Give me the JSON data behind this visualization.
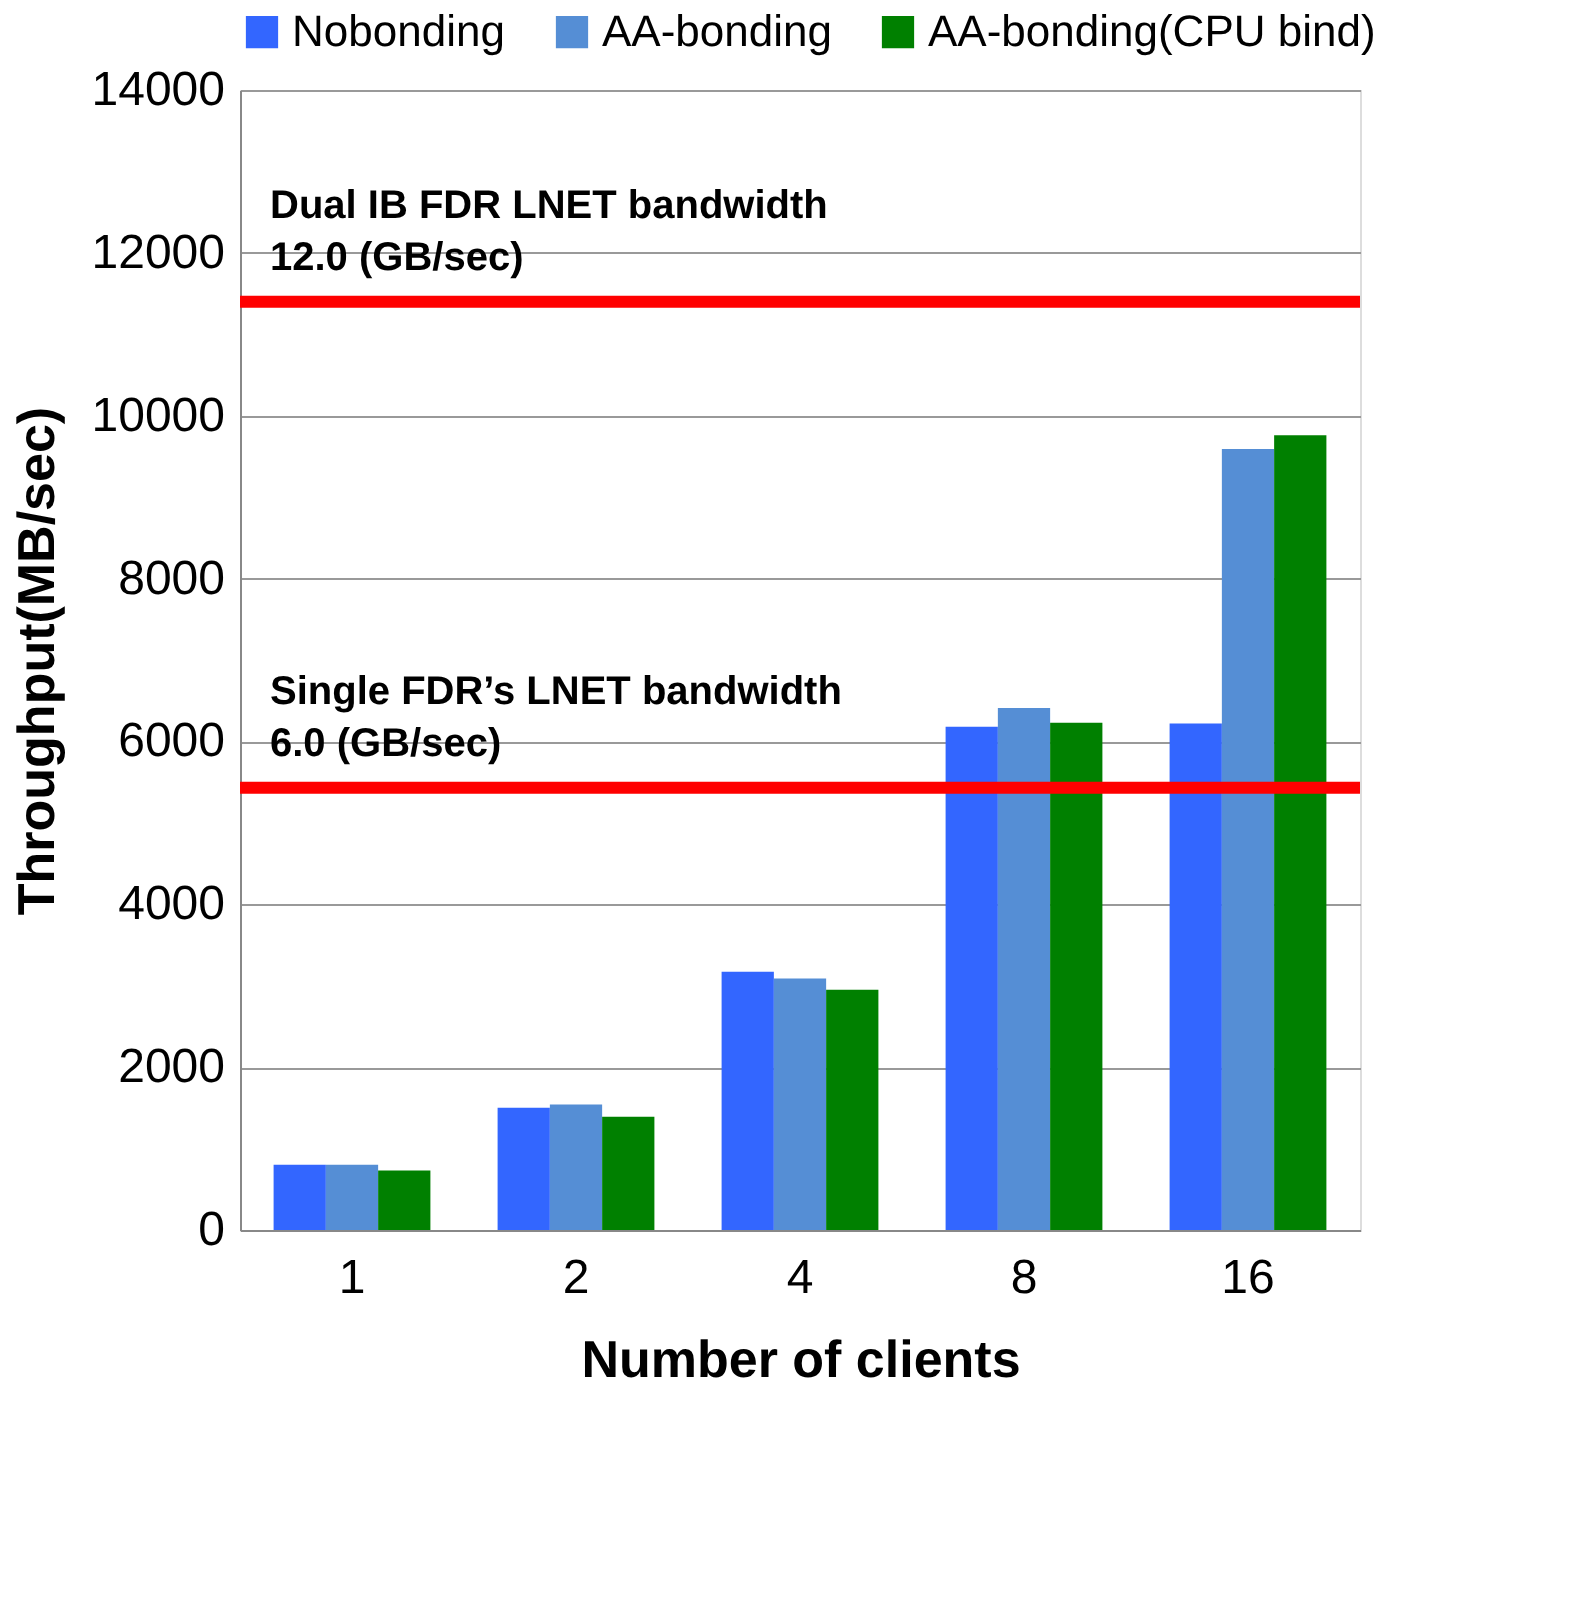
{
  "chart_data": {
    "type": "bar",
    "xlabel": "Number of clients",
    "ylabel": "Throughput(MB/sec)",
    "categories": [
      "1",
      "2",
      "4",
      "8",
      "16"
    ],
    "series": [
      {
        "name": "Nobonding",
        "color": "#3366ff",
        "values": [
          800,
          1500,
          3170,
          6180,
          6220
        ]
      },
      {
        "name": "AA-bonding",
        "color": "#558ed5",
        "values": [
          800,
          1540,
          3090,
          6410,
          9590
        ]
      },
      {
        "name": "AA-bonding(CPU bind)",
        "color": "#008000",
        "values": [
          730,
          1390,
          2950,
          6230,
          9760
        ]
      }
    ],
    "ylim": [
      0,
      14000
    ],
    "yticks": [
      0,
      2000,
      4000,
      6000,
      8000,
      10000,
      12000,
      14000
    ],
    "grid": "y",
    "legend": "top",
    "ref_lines": [
      {
        "axis": "y",
        "value": 11400,
        "label": "Dual IB FDR LNET bandwidth\n12.0 (GB/sec)",
        "color": "#ff0000"
      },
      {
        "axis": "y",
        "value": 5430,
        "label": "Single FDR’s LNET bandwidth\n6.0 (GB/sec)",
        "color": "#ff0000"
      }
    ]
  }
}
